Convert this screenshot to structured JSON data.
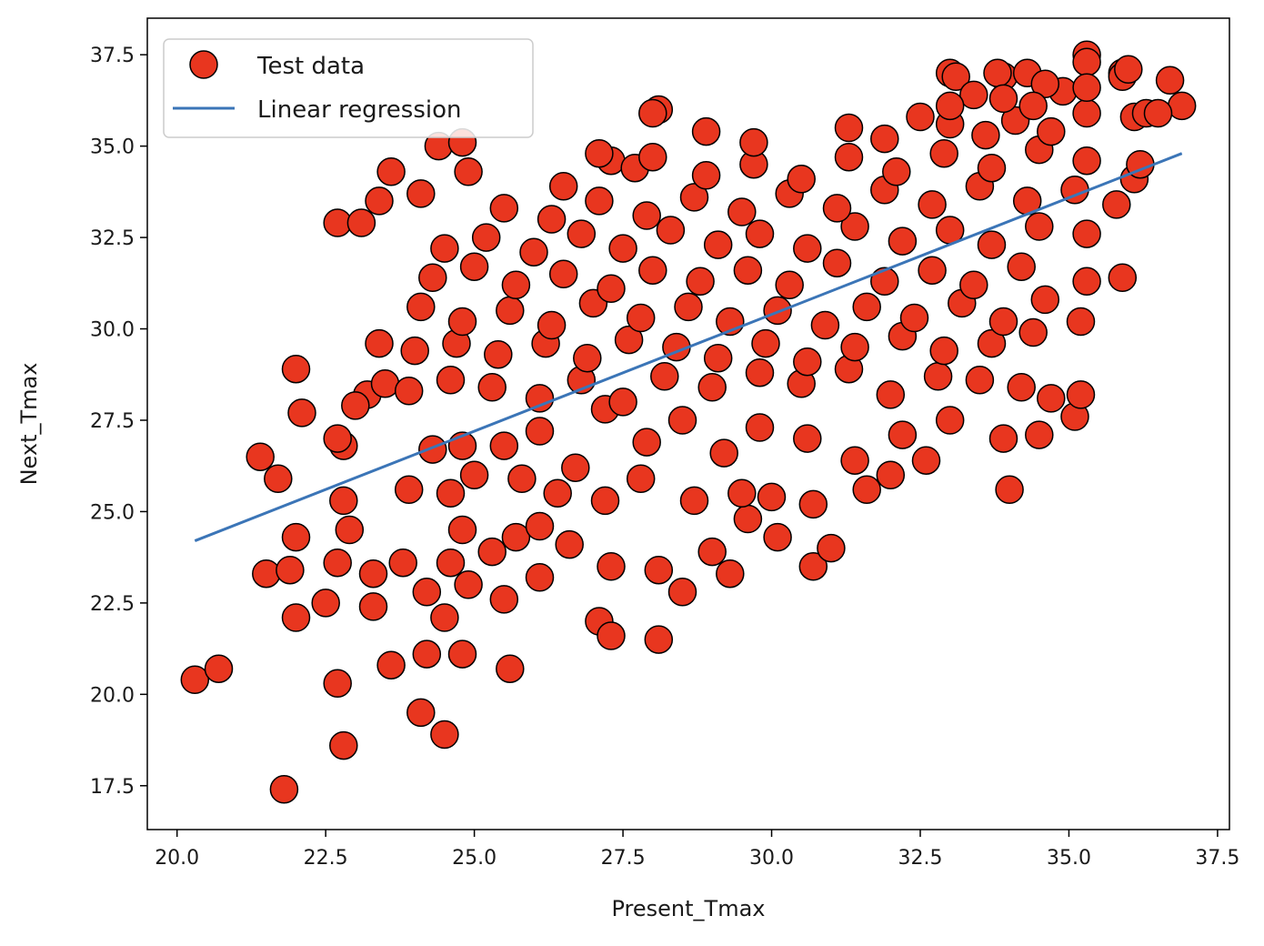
{
  "chart_data": {
    "type": "scatter",
    "title": "",
    "xlabel": "Present_Tmax",
    "ylabel": "Next_Tmax",
    "xlim": [
      19.5,
      37.7
    ],
    "ylim": [
      16.3,
      38.5
    ],
    "xticks": [
      20.0,
      22.5,
      25.0,
      27.5,
      30.0,
      32.5,
      35.0,
      37.5
    ],
    "yticks": [
      17.5,
      20.0,
      22.5,
      25.0,
      27.5,
      30.0,
      32.5,
      35.0,
      37.5
    ],
    "xtick_labels": [
      "20.0",
      "22.5",
      "25.0",
      "27.5",
      "30.0",
      "32.5",
      "35.0",
      "37.5"
    ],
    "ytick_labels": [
      "17.5",
      "20.0",
      "22.5",
      "25.0",
      "27.5",
      "30.0",
      "32.5",
      "35.0",
      "37.5"
    ],
    "grid": false,
    "legend_position": "top-left",
    "colors": {
      "points": "#e8361f",
      "point_edge": "#000000",
      "line": "#3b75b7"
    },
    "series": [
      {
        "name": "Test data",
        "type": "scatter",
        "points": [
          [
            20.3,
            20.4
          ],
          [
            20.7,
            20.7
          ],
          [
            21.8,
            17.4
          ],
          [
            22.8,
            18.6
          ],
          [
            22.7,
            20.3
          ],
          [
            24.1,
            19.5
          ],
          [
            24.5,
            18.9
          ],
          [
            23.6,
            20.8
          ],
          [
            24.2,
            21.1
          ],
          [
            24.8,
            21.1
          ],
          [
            25.6,
            20.7
          ],
          [
            21.4,
            26.5
          ],
          [
            21.7,
            25.9
          ],
          [
            22.0,
            28.9
          ],
          [
            22.1,
            27.7
          ],
          [
            21.5,
            23.3
          ],
          [
            21.9,
            23.4
          ],
          [
            22.0,
            24.3
          ],
          [
            22.0,
            22.1
          ],
          [
            22.5,
            22.5
          ],
          [
            22.7,
            32.9
          ],
          [
            23.1,
            32.9
          ],
          [
            23.4,
            33.5
          ],
          [
            23.6,
            34.3
          ],
          [
            24.1,
            33.7
          ],
          [
            24.4,
            35.0
          ],
          [
            24.8,
            35.1
          ],
          [
            24.9,
            34.3
          ],
          [
            23.4,
            29.6
          ],
          [
            23.2,
            28.2
          ],
          [
            23.5,
            28.5
          ],
          [
            23.0,
            27.9
          ],
          [
            22.8,
            26.8
          ],
          [
            22.7,
            27.0
          ],
          [
            22.8,
            25.3
          ],
          [
            22.9,
            24.5
          ],
          [
            22.7,
            23.6
          ],
          [
            23.3,
            22.4
          ],
          [
            23.3,
            23.3
          ],
          [
            23.8,
            23.6
          ],
          [
            24.2,
            22.8
          ],
          [
            24.5,
            22.1
          ],
          [
            24.6,
            23.6
          ],
          [
            24.8,
            24.5
          ],
          [
            24.9,
            23.0
          ],
          [
            25.5,
            22.6
          ],
          [
            25.3,
            23.9
          ],
          [
            25.7,
            24.3
          ],
          [
            26.1,
            23.2
          ],
          [
            26.1,
            24.6
          ],
          [
            26.6,
            24.1
          ],
          [
            27.1,
            22.0
          ],
          [
            27.3,
            21.6
          ],
          [
            27.3,
            23.5
          ],
          [
            28.1,
            21.5
          ],
          [
            28.1,
            23.4
          ],
          [
            28.5,
            22.8
          ],
          [
            29.3,
            23.3
          ],
          [
            30.7,
            23.5
          ],
          [
            31.0,
            24.0
          ],
          [
            29.0,
            23.9
          ],
          [
            30.1,
            24.3
          ],
          [
            29.6,
            24.8
          ],
          [
            23.9,
            25.6
          ],
          [
            24.6,
            25.5
          ],
          [
            25.0,
            26.0
          ],
          [
            25.8,
            25.9
          ],
          [
            26.4,
            25.5
          ],
          [
            27.2,
            25.3
          ],
          [
            27.8,
            25.9
          ],
          [
            28.7,
            25.3
          ],
          [
            29.5,
            25.5
          ],
          [
            30.0,
            25.4
          ],
          [
            30.7,
            25.2
          ],
          [
            31.6,
            25.6
          ],
          [
            32.0,
            26.0
          ],
          [
            32.6,
            26.4
          ],
          [
            34.0,
            25.6
          ],
          [
            24.3,
            26.7
          ],
          [
            24.8,
            26.8
          ],
          [
            25.5,
            26.8
          ],
          [
            26.1,
            27.2
          ],
          [
            26.7,
            26.2
          ],
          [
            27.2,
            27.8
          ],
          [
            27.9,
            26.9
          ],
          [
            28.5,
            27.5
          ],
          [
            29.2,
            26.6
          ],
          [
            29.8,
            27.3
          ],
          [
            30.6,
            27.0
          ],
          [
            31.4,
            26.4
          ],
          [
            32.2,
            27.1
          ],
          [
            33.0,
            27.5
          ],
          [
            33.9,
            27.0
          ],
          [
            34.5,
            27.1
          ],
          [
            35.1,
            27.6
          ],
          [
            35.2,
            28.2
          ],
          [
            34.7,
            28.1
          ],
          [
            23.9,
            28.3
          ],
          [
            24.6,
            28.6
          ],
          [
            25.3,
            28.4
          ],
          [
            26.1,
            28.1
          ],
          [
            26.8,
            28.6
          ],
          [
            27.5,
            28.0
          ],
          [
            28.2,
            28.7
          ],
          [
            29.0,
            28.4
          ],
          [
            29.8,
            28.8
          ],
          [
            30.5,
            28.5
          ],
          [
            31.3,
            28.9
          ],
          [
            32.0,
            28.2
          ],
          [
            32.8,
            28.7
          ],
          [
            33.5,
            28.6
          ],
          [
            34.2,
            28.4
          ],
          [
            24.0,
            29.4
          ],
          [
            24.7,
            29.6
          ],
          [
            25.4,
            29.3
          ],
          [
            26.2,
            29.6
          ],
          [
            26.9,
            29.2
          ],
          [
            27.6,
            29.7
          ],
          [
            28.4,
            29.5
          ],
          [
            29.1,
            29.2
          ],
          [
            29.9,
            29.6
          ],
          [
            30.6,
            29.1
          ],
          [
            31.4,
            29.5
          ],
          [
            32.2,
            29.8
          ],
          [
            32.9,
            29.4
          ],
          [
            33.7,
            29.6
          ],
          [
            34.4,
            29.9
          ],
          [
            24.1,
            30.6
          ],
          [
            24.8,
            30.2
          ],
          [
            25.6,
            30.5
          ],
          [
            26.3,
            30.1
          ],
          [
            27.0,
            30.7
          ],
          [
            27.8,
            30.3
          ],
          [
            28.6,
            30.6
          ],
          [
            29.3,
            30.2
          ],
          [
            30.1,
            30.5
          ],
          [
            30.9,
            30.1
          ],
          [
            31.6,
            30.6
          ],
          [
            32.4,
            30.3
          ],
          [
            33.2,
            30.7
          ],
          [
            33.9,
            30.2
          ],
          [
            34.6,
            30.8
          ],
          [
            35.2,
            30.2
          ],
          [
            24.3,
            31.4
          ],
          [
            25.0,
            31.7
          ],
          [
            25.7,
            31.2
          ],
          [
            26.5,
            31.5
          ],
          [
            27.3,
            31.1
          ],
          [
            28.0,
            31.6
          ],
          [
            28.8,
            31.3
          ],
          [
            29.6,
            31.6
          ],
          [
            30.3,
            31.2
          ],
          [
            31.1,
            31.8
          ],
          [
            31.9,
            31.3
          ],
          [
            32.7,
            31.6
          ],
          [
            33.4,
            31.2
          ],
          [
            34.2,
            31.7
          ],
          [
            35.3,
            31.3
          ],
          [
            35.9,
            31.4
          ],
          [
            24.5,
            32.2
          ],
          [
            25.2,
            32.5
          ],
          [
            26.0,
            32.1
          ],
          [
            26.8,
            32.6
          ],
          [
            27.5,
            32.2
          ],
          [
            28.3,
            32.7
          ],
          [
            29.1,
            32.3
          ],
          [
            29.8,
            32.6
          ],
          [
            30.6,
            32.2
          ],
          [
            31.4,
            32.8
          ],
          [
            32.2,
            32.4
          ],
          [
            33.0,
            32.7
          ],
          [
            33.7,
            32.3
          ],
          [
            34.5,
            32.8
          ],
          [
            35.3,
            32.6
          ],
          [
            25.5,
            33.3
          ],
          [
            26.3,
            33.0
          ],
          [
            27.1,
            33.5
          ],
          [
            27.9,
            33.1
          ],
          [
            28.7,
            33.6
          ],
          [
            29.5,
            33.2
          ],
          [
            30.3,
            33.7
          ],
          [
            31.1,
            33.3
          ],
          [
            31.9,
            33.8
          ],
          [
            32.7,
            33.4
          ],
          [
            33.5,
            33.9
          ],
          [
            34.3,
            33.5
          ],
          [
            35.1,
            33.8
          ],
          [
            35.8,
            33.4
          ],
          [
            26.5,
            33.9
          ],
          [
            27.3,
            34.6
          ],
          [
            27.1,
            34.8
          ],
          [
            27.7,
            34.4
          ],
          [
            28.0,
            34.7
          ],
          [
            28.9,
            34.2
          ],
          [
            29.7,
            34.5
          ],
          [
            30.5,
            34.1
          ],
          [
            31.3,
            34.7
          ],
          [
            32.1,
            34.3
          ],
          [
            32.9,
            34.8
          ],
          [
            33.7,
            34.4
          ],
          [
            34.5,
            34.9
          ],
          [
            35.3,
            34.6
          ],
          [
            36.1,
            34.1
          ],
          [
            36.2,
            34.5
          ],
          [
            28.1,
            36.0
          ],
          [
            28.0,
            35.9
          ],
          [
            28.9,
            35.4
          ],
          [
            29.7,
            35.1
          ],
          [
            31.3,
            35.5
          ],
          [
            31.9,
            35.2
          ],
          [
            32.5,
            35.8
          ],
          [
            33.0,
            35.6
          ],
          [
            33.6,
            35.3
          ],
          [
            34.1,
            35.7
          ],
          [
            34.7,
            35.4
          ],
          [
            35.3,
            35.9
          ],
          [
            36.1,
            35.8
          ],
          [
            36.3,
            35.9
          ],
          [
            33.0,
            37.0
          ],
          [
            33.1,
            36.9
          ],
          [
            33.9,
            36.9
          ],
          [
            33.8,
            37.0
          ],
          [
            34.3,
            37.0
          ],
          [
            34.9,
            36.5
          ],
          [
            35.3,
            37.5
          ],
          [
            35.3,
            37.3
          ],
          [
            35.9,
            37.0
          ],
          [
            35.9,
            36.9
          ],
          [
            36.0,
            37.1
          ],
          [
            36.7,
            36.8
          ],
          [
            36.9,
            36.1
          ],
          [
            36.5,
            35.9
          ],
          [
            33.4,
            36.4
          ],
          [
            33.9,
            36.3
          ],
          [
            34.6,
            36.7
          ],
          [
            35.3,
            36.6
          ],
          [
            33.0,
            36.1
          ],
          [
            34.4,
            36.1
          ]
        ]
      },
      {
        "name": "Linear regression",
        "type": "line",
        "points": [
          [
            20.3,
            24.2
          ],
          [
            36.9,
            34.8
          ]
        ]
      }
    ]
  }
}
